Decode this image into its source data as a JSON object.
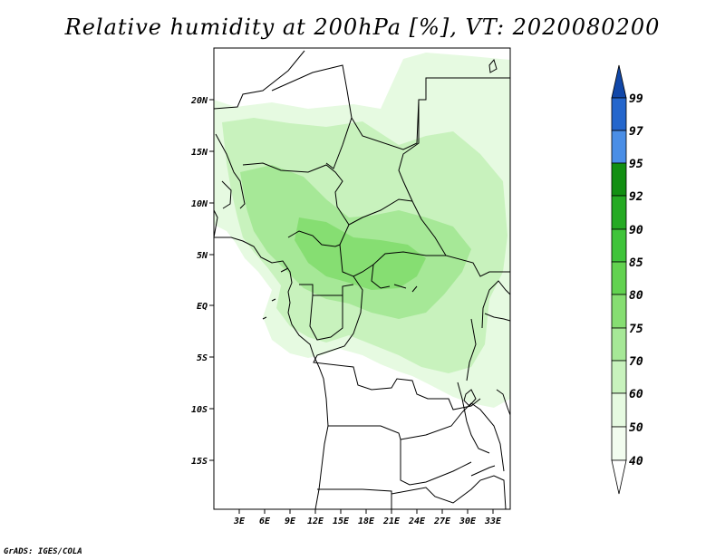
{
  "title": "Relative humidity at 200hPa [%], VT: 2020080200",
  "map": {
    "projection": "lat-lon",
    "lat_range": [
      -20,
      25
    ],
    "lon_range": [
      0,
      35
    ],
    "y_ticks": [
      "20N",
      "15N",
      "10N",
      "5N",
      "EQ",
      "5S",
      "10S",
      "15S"
    ],
    "x_ticks": [
      "3E",
      "6E",
      "9E",
      "12E",
      "15E",
      "18E",
      "21E",
      "24E",
      "27E",
      "30E",
      "33E"
    ],
    "field": "relative humidity at 200hPa",
    "units": "%"
  },
  "colorbar": {
    "levels": [
      "40",
      "50",
      "60",
      "70",
      "75",
      "80",
      "85",
      "90",
      "92",
      "95",
      "97",
      "99"
    ],
    "colors": [
      "#ffffff",
      "#e6fae1",
      "#c8f2bd",
      "#a6e897",
      "#86de72",
      "#62d250",
      "#3fc43a",
      "#25aa23",
      "#128f12",
      "#8ec4f0",
      "#4a8ee6",
      "#2466cc",
      "#1147a8"
    ]
  },
  "credit": "GrADS: IGES/COLA"
}
